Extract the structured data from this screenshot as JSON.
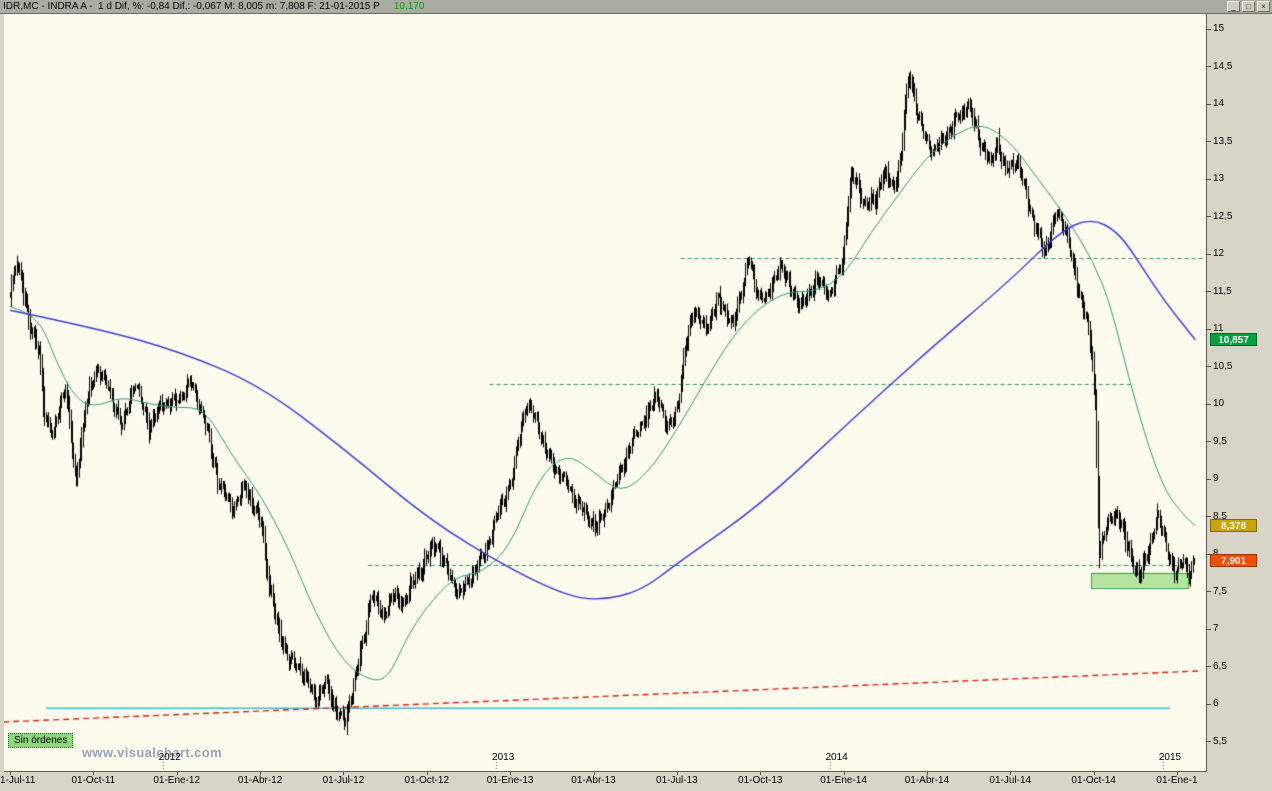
{
  "window": {
    "title_left": "IDR,MC - INDRA A -  1 d Dif, %: -0,84 Dif,: -0,067 M: 8,005 m: 7,808 F: 21-01-2015 P",
    "title_value": "10,170",
    "title_value_color": "#00a000",
    "controls": [
      {
        "name": "minimize",
        "glyph": "_"
      },
      {
        "name": "maximize",
        "glyph": "□"
      },
      {
        "name": "close",
        "glyph": "×"
      }
    ]
  },
  "footer": {
    "orders_label": "Sin órdenes",
    "orders_bg": "#8ed57d",
    "watermark": "www.visualchart.com",
    "watermark_color": "#95a2ba"
  },
  "chart_data": {
    "type": "bar",
    "subtype": "ohlc-daily-bars",
    "symbol": "IDR,MC",
    "instrument": "INDRA A",
    "timeframe": "1 d",
    "session_stats": {
      "dif_pct": "-0,84",
      "dif": "-0,067",
      "max": "8,005",
      "min": "7,808",
      "date": "21-01-2015",
      "p": "10,170"
    },
    "y_axis": {
      "max": 15,
      "min": 5.5,
      "step": 0.5,
      "tick_labels": [
        "15",
        "14,5",
        "14",
        "13,5",
        "13",
        "12,5",
        "12",
        "11,5",
        "11",
        "10,5",
        "10",
        "9,5",
        "9",
        "8,5",
        "8",
        "7,5",
        "7",
        "6,5",
        "6",
        "5,5"
      ]
    },
    "x_axis": {
      "start_date": "2011-07-01",
      "end_date": "2015-01-21",
      "tick_labels": [
        "1-Jul-11",
        "01-Oct-11",
        "01-Ene-12",
        "01-Abr-12",
        "01-Jul-12",
        "01-Oct-12",
        "01-Ene-13",
        "01-Abr-13",
        "01-Jul-13",
        "01-Oct-13",
        "01-Ene-14",
        "01-Abr-14",
        "01-Jul-14",
        "01-Oct-14",
        "01-Ene-1"
      ],
      "year_labels": [
        "2012",
        "2013",
        "2014",
        "2015"
      ]
    },
    "series": {
      "price": {
        "style": "ohlc-bars",
        "color": "#000000",
        "anchors": [
          [
            "2011-07-01",
            11.5
          ],
          [
            "2011-07-08",
            11.9
          ],
          [
            "2011-07-14",
            11.6
          ],
          [
            "2011-07-22",
            11.1
          ],
          [
            "2011-08-02",
            10.7
          ],
          [
            "2011-08-08",
            9.9
          ],
          [
            "2011-08-18",
            9.55
          ],
          [
            "2011-08-25",
            10.0
          ],
          [
            "2011-09-01",
            10.25
          ],
          [
            "2011-09-12",
            8.95
          ],
          [
            "2011-09-23",
            10.0
          ],
          [
            "2011-10-06",
            10.5
          ],
          [
            "2011-10-19",
            10.15
          ],
          [
            "2011-11-02",
            9.7
          ],
          [
            "2011-11-16",
            10.3
          ],
          [
            "2011-12-01",
            9.7
          ],
          [
            "2011-12-15",
            10.0
          ],
          [
            "2012-01-02",
            10.05
          ],
          [
            "2012-01-16",
            10.3
          ],
          [
            "2012-02-01",
            9.8
          ],
          [
            "2012-02-15",
            9.0
          ],
          [
            "2012-03-01",
            8.6
          ],
          [
            "2012-03-15",
            8.9
          ],
          [
            "2012-04-02",
            8.4
          ],
          [
            "2012-04-11",
            7.6
          ],
          [
            "2012-04-20",
            7.0
          ],
          [
            "2012-05-02",
            6.6
          ],
          [
            "2012-05-16",
            6.45
          ],
          [
            "2012-06-01",
            6.05
          ],
          [
            "2012-06-12",
            6.3
          ],
          [
            "2012-06-22",
            5.95
          ],
          [
            "2012-07-03",
            5.75
          ],
          [
            "2012-07-13",
            6.35
          ],
          [
            "2012-07-24",
            6.9
          ],
          [
            "2012-08-01",
            7.5
          ],
          [
            "2012-08-13",
            7.15
          ],
          [
            "2012-08-24",
            7.45
          ],
          [
            "2012-09-05",
            7.35
          ],
          [
            "2012-09-18",
            7.65
          ],
          [
            "2012-10-01",
            7.95
          ],
          [
            "2012-10-11",
            8.15
          ],
          [
            "2012-10-24",
            7.75
          ],
          [
            "2012-11-06",
            7.45
          ],
          [
            "2012-11-19",
            7.7
          ],
          [
            "2012-12-03",
            8.0
          ],
          [
            "2012-12-17",
            8.5
          ],
          [
            "2013-01-03",
            9.0
          ],
          [
            "2013-01-11",
            9.6
          ],
          [
            "2013-01-18",
            10.0
          ],
          [
            "2013-01-30",
            9.8
          ],
          [
            "2013-02-08",
            9.4
          ],
          [
            "2013-02-20",
            9.15
          ],
          [
            "2013-03-04",
            8.9
          ],
          [
            "2013-03-18",
            8.6
          ],
          [
            "2013-04-05",
            8.35
          ],
          [
            "2013-04-18",
            8.7
          ],
          [
            "2013-05-03",
            9.2
          ],
          [
            "2013-05-17",
            9.6
          ],
          [
            "2013-05-31",
            9.9
          ],
          [
            "2013-06-10",
            10.15
          ],
          [
            "2013-06-21",
            9.65
          ],
          [
            "2013-07-02",
            10.0
          ],
          [
            "2013-07-10",
            10.75
          ],
          [
            "2013-07-19",
            11.25
          ],
          [
            "2013-08-02",
            11.0
          ],
          [
            "2013-08-16",
            11.4
          ],
          [
            "2013-09-02",
            11.05
          ],
          [
            "2013-09-19",
            11.95
          ],
          [
            "2013-09-27",
            11.5
          ],
          [
            "2013-10-08",
            11.4
          ],
          [
            "2013-10-22",
            11.85
          ],
          [
            "2013-11-04",
            11.55
          ],
          [
            "2013-11-15",
            11.3
          ],
          [
            "2013-12-02",
            11.65
          ],
          [
            "2013-12-16",
            11.45
          ],
          [
            "2013-12-30",
            11.9
          ],
          [
            "2014-01-09",
            13.05
          ],
          [
            "2014-01-17",
            12.9
          ],
          [
            "2014-01-24",
            12.65
          ],
          [
            "2014-02-05",
            12.7
          ],
          [
            "2014-02-14",
            13.1
          ],
          [
            "2014-02-25",
            12.9
          ],
          [
            "2014-03-03",
            13.3
          ],
          [
            "2014-03-07",
            13.9
          ],
          [
            "2014-03-12",
            14.45
          ],
          [
            "2014-03-20",
            13.9
          ],
          [
            "2014-03-28",
            13.6
          ],
          [
            "2014-04-08",
            13.35
          ],
          [
            "2014-04-22",
            13.6
          ],
          [
            "2014-05-06",
            13.85
          ],
          [
            "2014-05-15",
            14.0
          ],
          [
            "2014-05-29",
            13.5
          ],
          [
            "2014-06-10",
            13.2
          ],
          [
            "2014-06-17",
            13.5
          ],
          [
            "2014-06-26",
            13.1
          ],
          [
            "2014-07-08",
            13.25
          ],
          [
            "2014-07-18",
            12.8
          ],
          [
            "2014-07-30",
            12.3
          ],
          [
            "2014-08-08",
            12.0
          ],
          [
            "2014-08-21",
            12.55
          ],
          [
            "2014-09-02",
            12.3
          ],
          [
            "2014-09-12",
            11.6
          ],
          [
            "2014-09-24",
            11.15
          ],
          [
            "2014-09-30",
            10.55
          ],
          [
            "2014-10-03",
            9.9
          ],
          [
            "2014-10-07",
            8.05
          ],
          [
            "2014-10-16",
            8.4
          ],
          [
            "2014-10-27",
            8.55
          ],
          [
            "2014-11-05",
            8.2
          ],
          [
            "2014-11-13",
            7.9
          ],
          [
            "2014-11-21",
            7.7
          ],
          [
            "2014-12-01",
            8.1
          ],
          [
            "2014-12-10",
            8.5
          ],
          [
            "2014-12-18",
            8.2
          ],
          [
            "2014-12-29",
            7.7
          ],
          [
            "2015-01-08",
            7.95
          ],
          [
            "2015-01-14",
            7.7
          ],
          [
            "2015-01-21",
            7.9
          ]
        ]
      },
      "ma_fast": {
        "label": "moving-average-fast",
        "color": "#2c9c74",
        "points": [
          [
            "2011-07-01",
            11.3
          ],
          [
            "2011-08-01",
            11.2
          ],
          [
            "2011-08-20",
            10.6
          ],
          [
            "2011-09-10",
            10.1
          ],
          [
            "2011-10-01",
            9.95
          ],
          [
            "2011-11-01",
            10.1
          ],
          [
            "2011-12-01",
            10.0
          ],
          [
            "2012-01-01",
            9.95
          ],
          [
            "2012-02-01",
            9.95
          ],
          [
            "2012-03-01",
            9.3
          ],
          [
            "2012-04-01",
            8.8
          ],
          [
            "2012-05-01",
            8.1
          ],
          [
            "2012-06-01",
            7.2
          ],
          [
            "2012-07-01",
            6.55
          ],
          [
            "2012-08-01",
            6.3
          ],
          [
            "2012-08-20",
            6.35
          ],
          [
            "2012-09-10",
            6.9
          ],
          [
            "2012-10-01",
            7.3
          ],
          [
            "2012-11-01",
            7.7
          ],
          [
            "2012-12-01",
            7.75
          ],
          [
            "2013-01-01",
            8.1
          ],
          [
            "2013-02-01",
            9.0
          ],
          [
            "2013-03-01",
            9.35
          ],
          [
            "2013-04-01",
            9.1
          ],
          [
            "2013-05-01",
            8.8
          ],
          [
            "2013-06-01",
            9.1
          ],
          [
            "2013-07-01",
            9.65
          ],
          [
            "2013-08-01",
            10.3
          ],
          [
            "2013-09-01",
            10.9
          ],
          [
            "2013-10-01",
            11.3
          ],
          [
            "2013-11-01",
            11.5
          ],
          [
            "2013-12-01",
            11.5
          ],
          [
            "2014-01-01",
            11.7
          ],
          [
            "2014-02-01",
            12.3
          ],
          [
            "2014-03-01",
            12.8
          ],
          [
            "2014-04-01",
            13.3
          ],
          [
            "2014-05-01",
            13.6
          ],
          [
            "2014-06-01",
            13.75
          ],
          [
            "2014-07-01",
            13.5
          ],
          [
            "2014-08-01",
            13.0
          ],
          [
            "2014-09-01",
            12.5
          ],
          [
            "2014-10-01",
            11.9
          ],
          [
            "2014-10-20",
            11.3
          ],
          [
            "2014-11-10",
            10.3
          ],
          [
            "2014-12-01",
            9.4
          ],
          [
            "2014-12-20",
            8.8
          ],
          [
            "2015-01-10",
            8.5
          ],
          [
            "2015-01-21",
            8.378
          ]
        ]
      },
      "ma_slow": {
        "label": "moving-average-slow",
        "color": "#3a3ad0",
        "points": [
          [
            "2011-07-01",
            11.25
          ],
          [
            "2011-10-08",
            11.0
          ],
          [
            "2012-01-04",
            10.7
          ],
          [
            "2012-04-01",
            10.25
          ],
          [
            "2012-07-02",
            9.4
          ],
          [
            "2012-10-04",
            8.45
          ],
          [
            "2013-01-01",
            7.8
          ],
          [
            "2013-03-01",
            7.45
          ],
          [
            "2013-04-07",
            7.38
          ],
          [
            "2013-05-22",
            7.5
          ],
          [
            "2013-07-04",
            7.9
          ],
          [
            "2013-10-01",
            8.65
          ],
          [
            "2014-01-02",
            9.7
          ],
          [
            "2014-04-01",
            10.7
          ],
          [
            "2014-07-01",
            11.65
          ],
          [
            "2014-08-25",
            12.3
          ],
          [
            "2014-09-28",
            12.48
          ],
          [
            "2014-10-28",
            12.3
          ],
          [
            "2014-11-25",
            11.8
          ],
          [
            "2014-12-19",
            11.35
          ],
          [
            "2015-01-21",
            10.857
          ]
        ]
      }
    },
    "overlays": {
      "level_color": "#2e8f68",
      "resistance_levels": [
        {
          "price": 11.95,
          "from": "2013-07-05",
          "to": "2015-02-01"
        },
        {
          "price": 10.27,
          "from": "2012-12-09",
          "to": "2014-11-15"
        },
        {
          "price": 7.85,
          "from": "2012-07-28",
          "to": "2015-01-15"
        }
      ],
      "trendline": {
        "color": "#dd2211",
        "style": "dashed",
        "from": [
          "2011-06-24",
          5.76
        ],
        "to": [
          "2015-01-24",
          6.44
        ]
      },
      "horizontal_line": {
        "color": "#45b4dc",
        "price": 5.95,
        "from": "2011-08-10",
        "to": "2014-12-24"
      },
      "zone": {
        "fill": "#b5e3a0",
        "border": "#3f9f3f",
        "from": "2014-09-29",
        "to": "2015-01-13",
        "price_top": 7.75,
        "price_bottom": 7.55
      }
    },
    "price_tags": [
      {
        "text": "10,857",
        "value": 10.857,
        "bg": "#00a13d"
      },
      {
        "text": "8,378",
        "value": 8.378,
        "bg": "#c8a500"
      },
      {
        "text": "7,901",
        "value": 7.901,
        "bg": "#f05000"
      }
    ]
  }
}
